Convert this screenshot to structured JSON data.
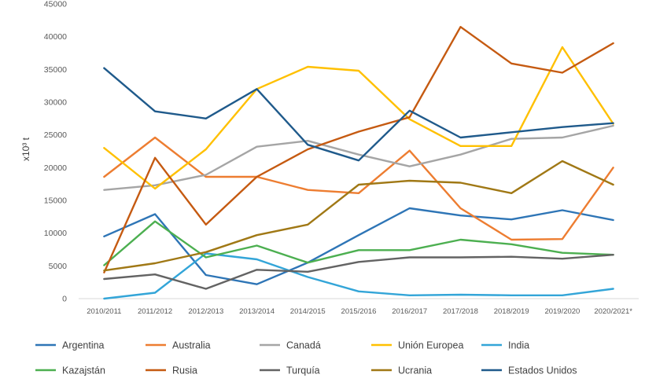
{
  "chart_data": {
    "type": "line",
    "title": "",
    "xlabel": "",
    "ylabel": "x10³ t",
    "ylim": [
      0,
      45000
    ],
    "yticks": [
      0,
      5000,
      10000,
      15000,
      20000,
      25000,
      30000,
      35000,
      40000,
      45000
    ],
    "grid": "none",
    "legend_position": "bottom",
    "categories": [
      "2010/2011",
      "2011/2012",
      "2012/2013",
      "2013/2014",
      "2014/2015",
      "2015/2016",
      "2016/2017",
      "2017/2018",
      "2018/2019",
      "2019/2020",
      "2020/2021*"
    ],
    "series": [
      {
        "name": "Argentina",
        "color": "#2E75B6",
        "values": [
          9500,
          12900,
          3600,
          2200,
          5500,
          9700,
          13800,
          12700,
          12100,
          13500,
          12000
        ]
      },
      {
        "name": "Australia",
        "color": "#ED7D31",
        "values": [
          18600,
          24600,
          18600,
          18600,
          16600,
          16100,
          22600,
          13800,
          9000,
          9100,
          20000
        ]
      },
      {
        "name": "Canadá",
        "color": "#A5A5A5",
        "values": [
          16600,
          17300,
          18900,
          23200,
          24100,
          22000,
          20200,
          22000,
          24400,
          24600,
          26400
        ]
      },
      {
        "name": "Unión Europea",
        "color": "#FFC000",
        "values": [
          23000,
          16800,
          22800,
          32000,
          35400,
          34800,
          27400,
          23300,
          23300,
          38400,
          26700
        ]
      },
      {
        "name": "India",
        "color": "#33A5D8",
        "values": [
          0,
          900,
          6900,
          6000,
          3300,
          1100,
          500,
          600,
          500,
          500,
          1500
        ]
      },
      {
        "name": "Kazajstán",
        "color": "#4CAF50",
        "values": [
          5100,
          11800,
          6300,
          8100,
          5500,
          7400,
          7400,
          9000,
          8300,
          7000,
          6700
        ]
      },
      {
        "name": "Rusia",
        "color": "#C55A11",
        "values": [
          4000,
          21500,
          11300,
          18600,
          22800,
          25500,
          27700,
          41500,
          35900,
          34500,
          39000
        ]
      },
      {
        "name": "Turquía",
        "color": "#636363",
        "values": [
          3000,
          3700,
          1500,
          4400,
          4100,
          5600,
          6300,
          6300,
          6400,
          6100,
          6700
        ]
      },
      {
        "name": "Ucrania",
        "color": "#A07815",
        "values": [
          4300,
          5400,
          7100,
          9700,
          11300,
          17400,
          18000,
          17700,
          16100,
          21000,
          17400
        ]
      },
      {
        "name": "Estados Unidos",
        "color": "#1F5A8B",
        "values": [
          35200,
          28600,
          27500,
          32000,
          23500,
          21100,
          28700,
          24600,
          25400,
          26200,
          26800
        ]
      }
    ]
  }
}
